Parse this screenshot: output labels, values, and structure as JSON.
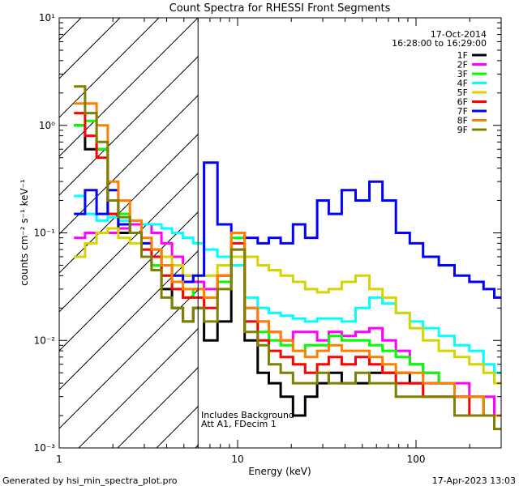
{
  "chart_data": {
    "type": "line",
    "title": "Count Spectra for RHESSI Front Segments",
    "xlabel": "Energy (keV)",
    "ylabel": "counts cm⁻² s⁻¹ keV⁻¹",
    "xscale": "log",
    "yscale": "log",
    "xlim": [
      1,
      300
    ],
    "ylim": [
      0.001,
      10
    ],
    "x_tick_labels": [
      "1",
      "10",
      "100"
    ],
    "y_tick_labels": [
      "10⁻³",
      "10⁻²",
      "10⁻¹",
      "10⁰",
      "10¹"
    ],
    "date": "17-Oct-2014",
    "time_range": "16:28:00 to 16:29:00",
    "legend_position": "top-right",
    "shaded_region_keV": [
      1,
      6
    ],
    "divider_keV": 6,
    "annotations": [
      "Includes Background",
      "Att A1, FDecim 1"
    ],
    "footer_left": "Generated by hsi_min_spectra_plot.pro",
    "footer_right": "17-Apr-2023 13:03",
    "series": [
      {
        "name": "1F",
        "color": "#000000",
        "x": [
          1.3,
          1.5,
          1.75,
          2.0,
          2.3,
          2.7,
          3.1,
          3.5,
          4.0,
          4.6,
          5.3,
          6.0,
          7.0,
          8.5,
          10,
          12,
          14,
          16,
          19,
          22,
          26,
          30,
          35,
          42,
          50,
          60,
          70,
          85,
          100,
          120,
          150,
          180,
          220,
          260,
          290
        ],
        "y": [
          1.0,
          0.6,
          0.6,
          0.15,
          0.1,
          0.1,
          0.06,
          0.05,
          0.03,
          0.02,
          0.015,
          0.02,
          0.01,
          0.015,
          0.06,
          0.01,
          0.005,
          0.004,
          0.003,
          0.002,
          0.003,
          0.004,
          0.005,
          0.004,
          0.004,
          0.005,
          0.005,
          0.005,
          0.004,
          0.004,
          0.004,
          0.003,
          0.003,
          0.002,
          0.002
        ]
      },
      {
        "name": "2F",
        "color": "#ff00ff",
        "x": [
          1.3,
          1.5,
          1.75,
          2.0,
          2.3,
          2.7,
          3.1,
          3.5,
          4.0,
          4.6,
          5.3,
          6.0,
          7.0,
          8.5,
          10,
          12,
          14,
          16,
          19,
          22,
          26,
          30,
          35,
          42,
          50,
          60,
          70,
          85,
          100,
          120,
          150,
          180,
          220,
          260,
          290
        ],
        "y": [
          0.09,
          0.1,
          0.1,
          0.1,
          0.11,
          0.12,
          0.12,
          0.1,
          0.08,
          0.06,
          0.04,
          0.035,
          0.03,
          0.04,
          0.07,
          0.02,
          0.015,
          0.012,
          0.01,
          0.012,
          0.012,
          0.01,
          0.012,
          0.011,
          0.012,
          0.013,
          0.01,
          0.008,
          0.006,
          0.005,
          0.004,
          0.004,
          0.003,
          0.003,
          0.002
        ]
      },
      {
        "name": "3F",
        "color": "#00ff00",
        "x": [
          1.3,
          1.5,
          1.75,
          2.0,
          2.3,
          2.7,
          3.1,
          3.5,
          4.0,
          4.6,
          5.3,
          6.0,
          7.0,
          8.5,
          10,
          12,
          14,
          16,
          19,
          22,
          26,
          30,
          35,
          42,
          50,
          60,
          70,
          85,
          100,
          120,
          150,
          180,
          220,
          260,
          290
        ],
        "y": [
          1.0,
          1.1,
          0.6,
          0.2,
          0.15,
          0.1,
          0.07,
          0.05,
          0.04,
          0.03,
          0.025,
          0.03,
          0.025,
          0.035,
          0.09,
          0.015,
          0.012,
          0.01,
          0.009,
          0.008,
          0.009,
          0.009,
          0.011,
          0.01,
          0.01,
          0.009,
          0.008,
          0.007,
          0.006,
          0.005,
          0.004,
          0.003,
          0.003,
          0.002,
          0.002
        ]
      },
      {
        "name": "4F",
        "color": "#00ffff",
        "x": [
          1.3,
          1.5,
          1.75,
          2.0,
          2.3,
          2.7,
          3.1,
          3.5,
          4.0,
          4.6,
          5.3,
          6.0,
          7.0,
          8.5,
          10,
          12,
          14,
          16,
          19,
          22,
          26,
          30,
          35,
          42,
          50,
          60,
          70,
          85,
          100,
          120,
          150,
          180,
          220,
          260,
          290
        ],
        "y": [
          0.22,
          0.15,
          0.13,
          0.14,
          0.13,
          0.13,
          0.12,
          0.12,
          0.11,
          0.1,
          0.09,
          0.08,
          0.07,
          0.06,
          0.05,
          0.025,
          0.02,
          0.018,
          0.017,
          0.016,
          0.015,
          0.016,
          0.016,
          0.015,
          0.02,
          0.025,
          0.022,
          0.018,
          0.015,
          0.013,
          0.011,
          0.009,
          0.008,
          0.006,
          0.005
        ]
      },
      {
        "name": "5F",
        "color": "#d4d400",
        "x": [
          1.3,
          1.5,
          1.75,
          2.0,
          2.3,
          2.7,
          3.1,
          3.5,
          4.0,
          4.6,
          5.3,
          6.0,
          7.0,
          8.5,
          10,
          12,
          14,
          16,
          19,
          22,
          26,
          30,
          35,
          42,
          50,
          60,
          70,
          85,
          100,
          120,
          150,
          180,
          220,
          260,
          290
        ],
        "y": [
          0.06,
          0.08,
          0.1,
          0.11,
          0.09,
          0.08,
          0.08,
          0.07,
          0.06,
          0.05,
          0.04,
          0.04,
          0.04,
          0.05,
          0.06,
          0.06,
          0.05,
          0.045,
          0.04,
          0.035,
          0.03,
          0.028,
          0.03,
          0.035,
          0.04,
          0.03,
          0.025,
          0.018,
          0.013,
          0.01,
          0.008,
          0.007,
          0.006,
          0.005,
          0.004
        ]
      },
      {
        "name": "6F",
        "color": "#ff0000",
        "x": [
          1.3,
          1.5,
          1.75,
          2.0,
          2.3,
          2.7,
          3.1,
          3.5,
          4.0,
          4.6,
          5.3,
          6.0,
          7.0,
          8.5,
          10,
          12,
          14,
          16,
          19,
          22,
          26,
          30,
          35,
          42,
          50,
          60,
          70,
          85,
          100,
          120,
          150,
          180,
          220,
          260,
          290
        ],
        "y": [
          1.3,
          0.8,
          0.5,
          0.15,
          0.12,
          0.1,
          0.07,
          0.06,
          0.04,
          0.03,
          0.025,
          0.025,
          0.02,
          0.04,
          0.08,
          0.015,
          0.01,
          0.008,
          0.007,
          0.006,
          0.005,
          0.006,
          0.007,
          0.006,
          0.007,
          0.006,
          0.005,
          0.004,
          0.004,
          0.003,
          0.003,
          0.003,
          0.002,
          0.002,
          0.002
        ]
      },
      {
        "name": "7F",
        "color": "#0000ff",
        "x": [
          1.3,
          1.5,
          1.75,
          2.0,
          2.3,
          2.7,
          3.1,
          3.5,
          4.0,
          4.6,
          5.3,
          6.0,
          7.0,
          8.5,
          10,
          12,
          14,
          16,
          19,
          22,
          26,
          30,
          35,
          42,
          50,
          60,
          70,
          85,
          100,
          120,
          150,
          180,
          220,
          260,
          290
        ],
        "y": [
          0.15,
          0.25,
          0.15,
          0.25,
          0.12,
          0.1,
          0.08,
          0.07,
          0.05,
          0.04,
          0.035,
          0.04,
          0.45,
          0.12,
          0.1,
          0.09,
          0.08,
          0.09,
          0.08,
          0.12,
          0.09,
          0.2,
          0.15,
          0.25,
          0.2,
          0.3,
          0.2,
          0.1,
          0.08,
          0.06,
          0.05,
          0.04,
          0.035,
          0.03,
          0.025
        ]
      },
      {
        "name": "8F",
        "color": "#ff8000",
        "x": [
          1.3,
          1.5,
          1.75,
          2.0,
          2.3,
          2.7,
          3.1,
          3.5,
          4.0,
          4.6,
          5.3,
          6.0,
          7.0,
          8.5,
          10,
          12,
          14,
          16,
          19,
          22,
          26,
          30,
          35,
          42,
          50,
          60,
          70,
          85,
          100,
          120,
          150,
          180,
          220,
          260,
          290
        ],
        "y": [
          1.6,
          1.6,
          1.0,
          0.3,
          0.2,
          0.13,
          0.09,
          0.07,
          0.05,
          0.035,
          0.03,
          0.03,
          0.025,
          0.04,
          0.1,
          0.02,
          0.015,
          0.012,
          0.01,
          0.008,
          0.007,
          0.008,
          0.009,
          0.008,
          0.008,
          0.007,
          0.006,
          0.005,
          0.005,
          0.004,
          0.004,
          0.003,
          0.003,
          0.002,
          0.002
        ]
      },
      {
        "name": "9F",
        "color": "#808000",
        "x": [
          1.3,
          1.5,
          1.75,
          2.0,
          2.3,
          2.7,
          3.1,
          3.5,
          4.0,
          4.6,
          5.3,
          6.0,
          7.0,
          8.5,
          10,
          12,
          14,
          16,
          19,
          22,
          26,
          30,
          35,
          42,
          50,
          60,
          70,
          85,
          100,
          120,
          150,
          180,
          220,
          260,
          290
        ],
        "y": [
          2.3,
          1.3,
          0.7,
          0.2,
          0.14,
          0.1,
          0.06,
          0.045,
          0.025,
          0.02,
          0.015,
          0.02,
          0.015,
          0.03,
          0.07,
          0.012,
          0.009,
          0.006,
          0.005,
          0.004,
          0.004,
          0.005,
          0.004,
          0.004,
          0.005,
          0.004,
          0.004,
          0.003,
          0.003,
          0.003,
          0.003,
          0.002,
          0.002,
          0.002,
          0.0015
        ]
      }
    ]
  }
}
